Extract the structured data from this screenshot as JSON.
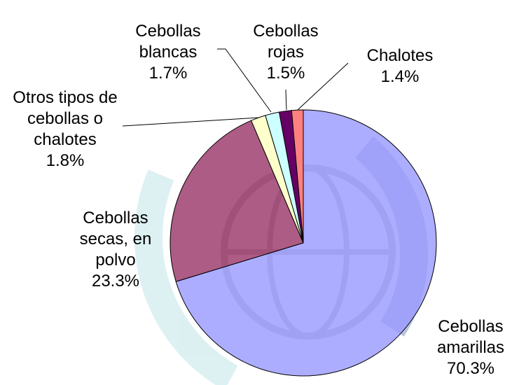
{
  "chart_data": {
    "type": "pie",
    "categories": [
      "Cebollas amarillas",
      "Cebollas secas, en polvo",
      "Otros tipos de cebollas o chalotes",
      "Cebollas blancas",
      "Cebollas rojas",
      "Chalotes"
    ],
    "values": [
      70.3,
      23.3,
      1.8,
      1.7,
      1.5,
      1.4
    ],
    "value_labels": [
      "70.3%",
      "23.3%",
      "1.8%",
      "1.7%",
      "1.5%",
      "1.4%"
    ],
    "colors": [
      "#9999ff",
      "#993366",
      "#ffffcc",
      "#ccffff",
      "#660066",
      "#ff8080"
    ]
  }
}
